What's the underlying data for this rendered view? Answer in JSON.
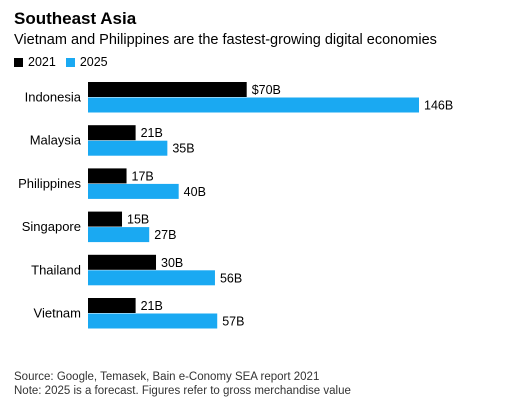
{
  "title": "Southeast Asia",
  "subtitle": "Vietnam and Philippines are the fastest-growing digital economies",
  "source": "Source: Google, Temasek, Bain e-Conomy SEA report 2021",
  "note": "Note: 2025 is a forecast. Figures refer to gross merchandise value",
  "colors": {
    "2021": "#000000",
    "2025": "#1aa9f2"
  },
  "chart_data": {
    "type": "bar",
    "orientation": "horizontal",
    "categories": [
      "Indonesia",
      "Malaysia",
      "Philippines",
      "Singapore",
      "Thailand",
      "Vietnam"
    ],
    "series": [
      {
        "name": "2021",
        "values": [
          70,
          21,
          17,
          15,
          30,
          21
        ],
        "labels": [
          "$70B",
          "21B",
          "17B",
          "15B",
          "30B",
          "21B"
        ]
      },
      {
        "name": "2025",
        "values": [
          146,
          35,
          40,
          27,
          56,
          57
        ],
        "labels": [
          "146B",
          "35B",
          "40B",
          "27B",
          "56B",
          "57B"
        ]
      }
    ],
    "xlim": [
      0,
      146
    ],
    "legend_position": "top-left",
    "grid": false
  }
}
